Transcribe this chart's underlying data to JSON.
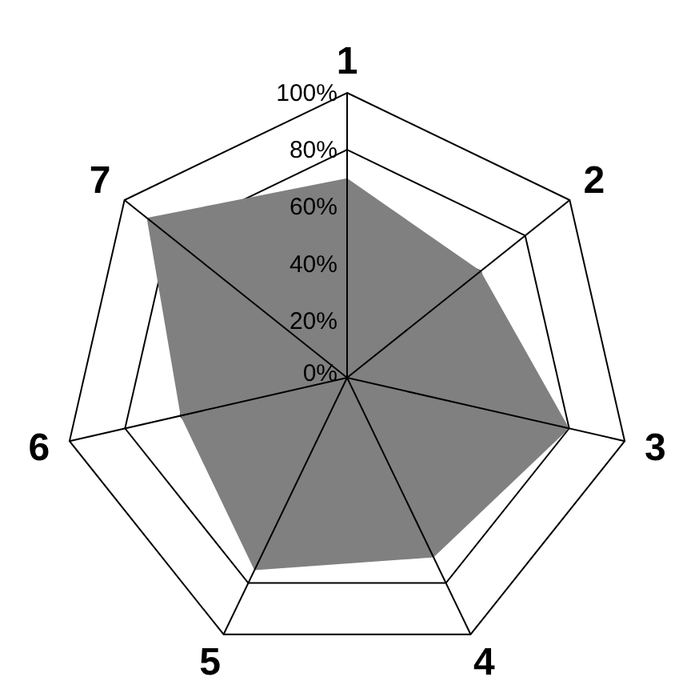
{
  "chart_data": {
    "type": "radar",
    "categories": [
      "1",
      "2",
      "3",
      "4",
      "5",
      "6",
      "7"
    ],
    "series": [
      {
        "color": "#808080",
        "values": [
          70,
          60,
          80,
          70,
          75,
          60,
          90
        ]
      }
    ],
    "ylim": [
      0,
      100
    ],
    "yticks": [
      {
        "value": 0,
        "label": "0%"
      },
      {
        "value": 20,
        "label": "20%"
      },
      {
        "value": 40,
        "label": "40%"
      },
      {
        "value": 60,
        "label": "60%"
      },
      {
        "value": 80,
        "label": "80%"
      },
      {
        "value": 100,
        "label": "100%"
      }
    ],
    "grid": true
  }
}
